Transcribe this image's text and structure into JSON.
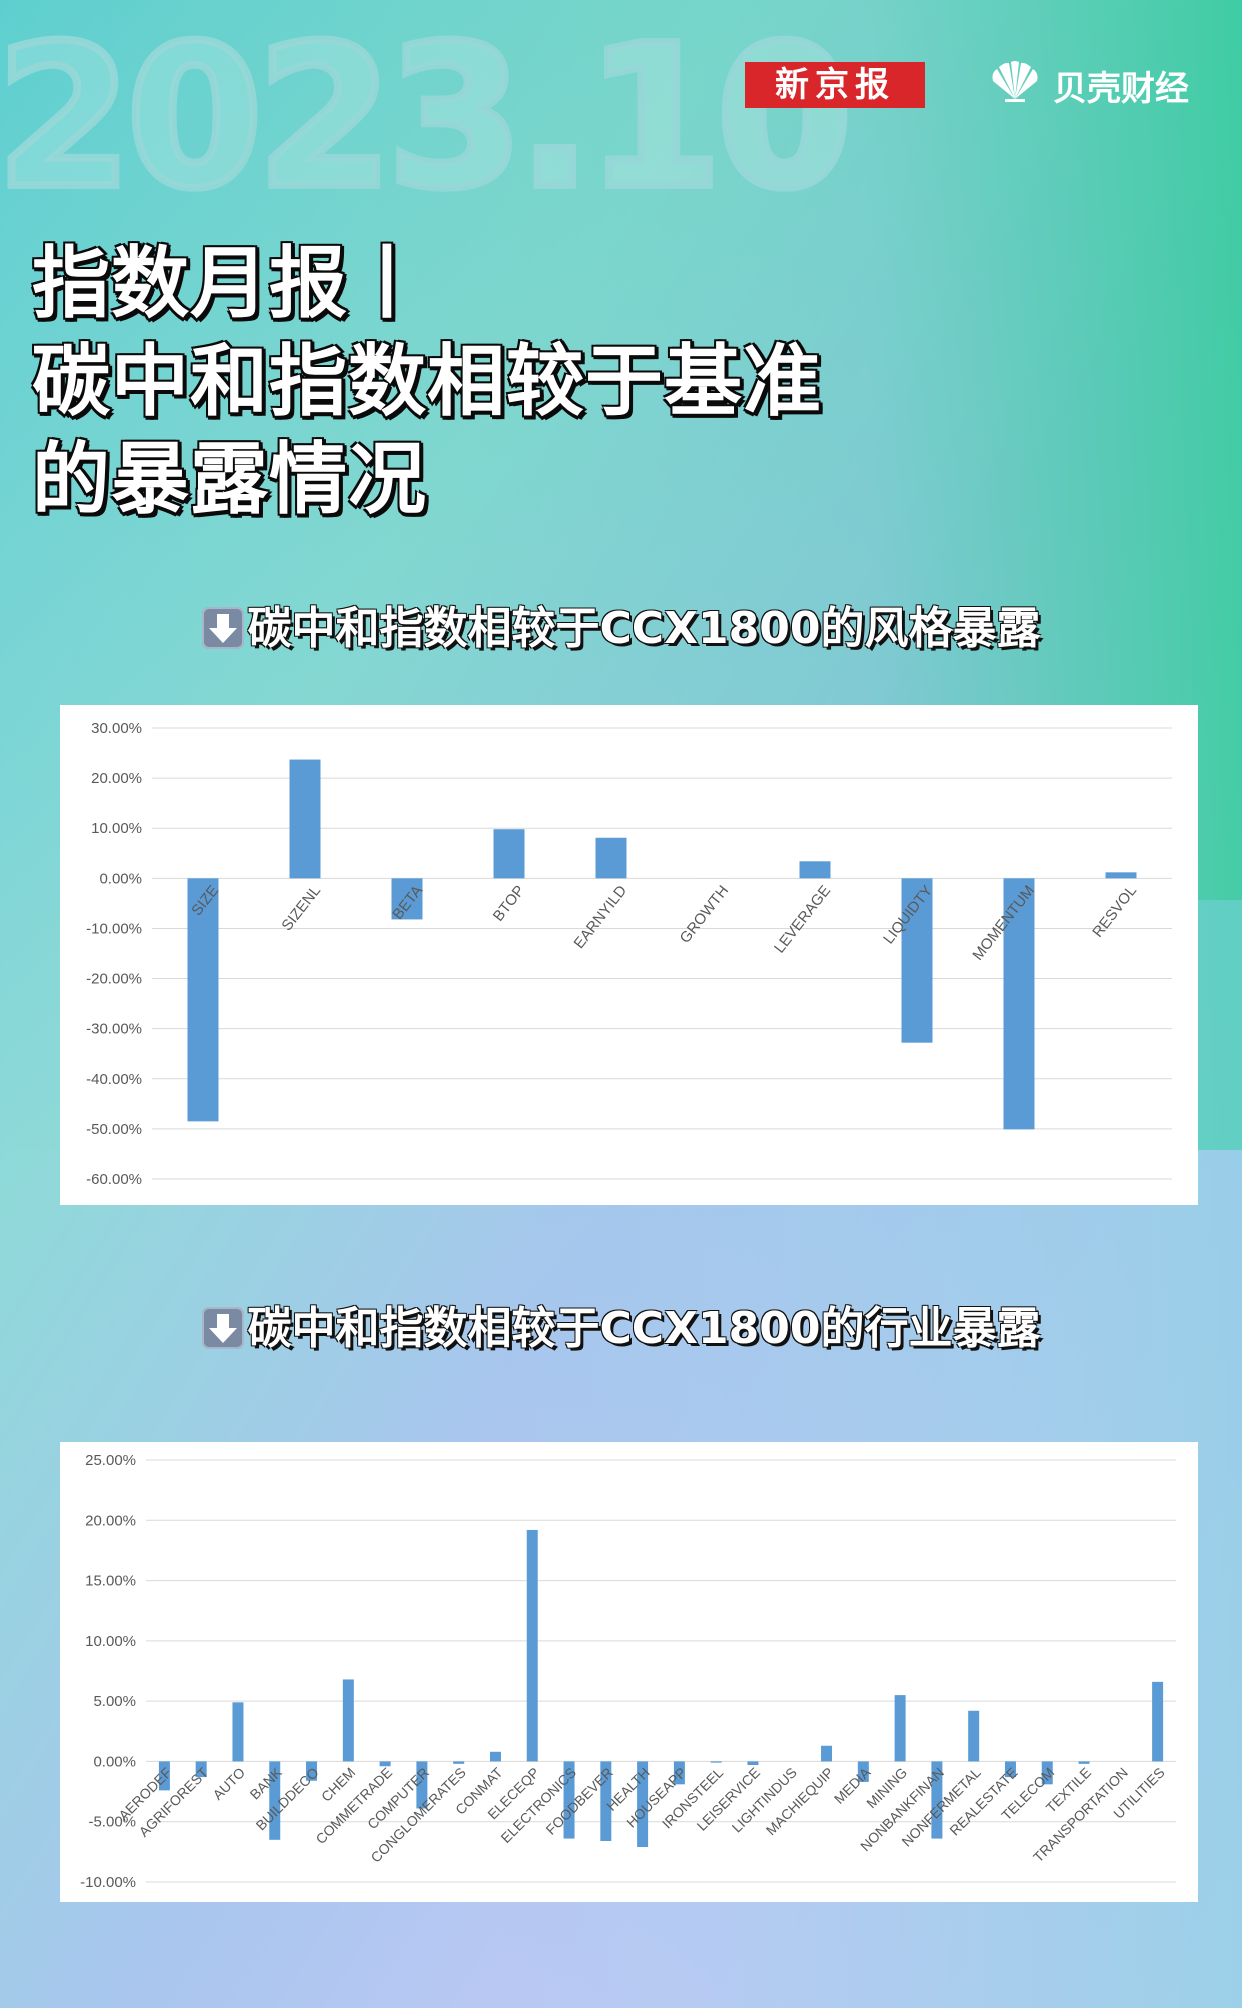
{
  "header": {
    "year_text": "2023.10",
    "logo_xinjingbao": "新京报",
    "logo_beike": "贝壳财经"
  },
  "title": {
    "line1": "指数月报丨",
    "line2": "碳中和指数相较于基准",
    "line3": "的暴露情况"
  },
  "sections": {
    "style_heading": "碳中和指数相较于CCX1800的风格暴露",
    "industry_heading": "碳中和指数相较于CCX1800的行业暴露",
    "arrow_icon": "down-arrow-icon"
  },
  "colors": {
    "bar": "#5b9bd5",
    "grid": "#d9d9d9"
  },
  "chart_data": [
    {
      "type": "bar",
      "categories": [
        "SIZE",
        "SIZENL",
        "BETA",
        "BTOP",
        "EARNYILD",
        "GROWTH",
        "LEVERAGE",
        "LIQUIDTY",
        "MOMENTUM",
        "RESVOL"
      ],
      "values": [
        -48.5,
        23.7,
        -8.2,
        9.8,
        8.1,
        0.0,
        3.4,
        -32.8,
        -50.1,
        1.2
      ],
      "y_ticks": [
        "30.00%",
        "20.00%",
        "10.00%",
        "0.00%",
        "-10.00%",
        "-20.00%",
        "-30.00%",
        "-40.00%",
        "-50.00%",
        "-60.00%"
      ],
      "ylim": [
        -60,
        30
      ],
      "grid": true,
      "title": "",
      "xlabel": "",
      "ylabel": ""
    },
    {
      "type": "bar",
      "categories": [
        "AERODEF",
        "AGRIFOREST",
        "AUTO",
        "BANK",
        "BUILDDECO",
        "CHEM",
        "COMMETRADE",
        "COMPUTER",
        "CONGLOMERATES",
        "CONMAT",
        "ELECEQP",
        "ELECTRONICS",
        "FOODBEVER",
        "HEALTH",
        "HOUSEAPP",
        "IRONSTEEL",
        "LEISERVICE",
        "LIGHTINDUS",
        "MACHIEQUIP",
        "MEDIA",
        "MINING",
        "NONBANKFINAN",
        "NONFERMETAL",
        "REALESTATE",
        "TELECOM",
        "TEXTILE",
        "TRANSPORTATION",
        "UTILITIES"
      ],
      "values": [
        -2.4,
        -1.3,
        4.9,
        -6.5,
        -1.6,
        6.8,
        -0.4,
        -3.9,
        -0.2,
        0.8,
        19.2,
        -6.4,
        -6.6,
        -7.1,
        -1.9,
        -0.1,
        -0.3,
        0.0,
        1.3,
        -1.7,
        5.5,
        -6.4,
        4.2,
        -1.3,
        -1.9,
        -0.2,
        0.0,
        6.6
      ],
      "y_ticks": [
        "25.00%",
        "20.00%",
        "15.00%",
        "10.00%",
        "5.00%",
        "0.00%",
        "-5.00%",
        "-10.00%"
      ],
      "ylim": [
        -10,
        25
      ],
      "grid": true,
      "title": "",
      "xlabel": "",
      "ylabel": ""
    }
  ]
}
